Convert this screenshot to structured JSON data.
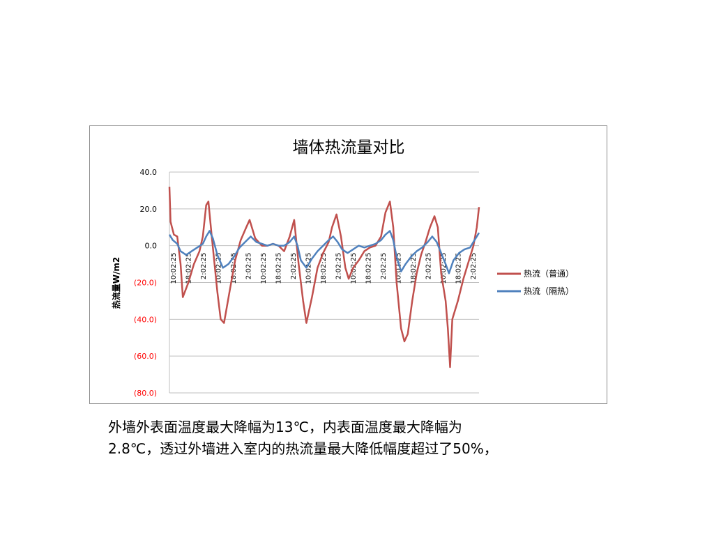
{
  "caption": {
    "line1": "外墙外表面温度最大降幅为13℃，内表面温度最大降幅为",
    "line2": "2.8℃，透过外墙进入室内的热流量最大降低幅度超过了50%，"
  },
  "chart_data": {
    "type": "line",
    "title": "墙体热流量对比",
    "xlabel": "",
    "ylabel": "热流量W/m2",
    "ylim": [
      -80,
      40
    ],
    "yticks": [
      40,
      20,
      0,
      -20,
      -40,
      -60,
      -80
    ],
    "ytick_labels": [
      "40.0",
      "20.0",
      "0.0",
      "(20.0)",
      "(40.0)",
      "(60.0)",
      "(80.0)"
    ],
    "x_tick_labels": [
      "10:02:25",
      "18:02:25",
      "2:02:25",
      "10:02:25",
      "18:02:25",
      "2:02:25",
      "10:02:25",
      "18:02:25",
      "2:02:25",
      "10:02:25",
      "18:02:25",
      "2:02:25",
      "10:02:25",
      "18:02:25",
      "2:02:25",
      "10:02:25",
      "18:02:25",
      "2:02:25",
      "10:02:25",
      "18:02:25",
      "2:02:25"
    ],
    "grid": true,
    "legend_position": "right",
    "negative_tick_color": "#ff0000",
    "series": [
      {
        "name": "热流（普通）",
        "color": "#c0504d",
        "points": [
          [
            0,
            32
          ],
          [
            0.1,
            13
          ],
          [
            0.4,
            6
          ],
          [
            0.7,
            5
          ],
          [
            1.0,
            -10
          ],
          [
            1.2,
            -28
          ],
          [
            1.7,
            -20
          ],
          [
            2.2,
            -10
          ],
          [
            2.7,
            -3
          ],
          [
            3.0,
            5
          ],
          [
            3.3,
            22
          ],
          [
            3.5,
            24
          ],
          [
            3.8,
            5
          ],
          [
            4.3,
            -25
          ],
          [
            4.6,
            -40
          ],
          [
            4.9,
            -42
          ],
          [
            5.4,
            -25
          ],
          [
            5.9,
            -8
          ],
          [
            6.4,
            3
          ],
          [
            6.9,
            10
          ],
          [
            7.2,
            14
          ],
          [
            7.7,
            4
          ],
          [
            8.3,
            0
          ],
          [
            8.8,
            0
          ],
          [
            9.3,
            1
          ],
          [
            9.8,
            0
          ],
          [
            10.3,
            -3
          ],
          [
            10.8,
            5
          ],
          [
            11.2,
            14
          ],
          [
            11.6,
            -10
          ],
          [
            12.0,
            -30
          ],
          [
            12.3,
            -42
          ],
          [
            12.8,
            -28
          ],
          [
            13.3,
            -12
          ],
          [
            13.8,
            -4
          ],
          [
            14.3,
            2
          ],
          [
            14.6,
            10
          ],
          [
            15.0,
            17
          ],
          [
            15.4,
            5
          ],
          [
            15.8,
            -12
          ],
          [
            16.1,
            -18
          ],
          [
            16.5,
            -12
          ],
          [
            17.0,
            -8
          ],
          [
            17.5,
            -3
          ],
          [
            18.0,
            -1
          ],
          [
            18.5,
            0
          ],
          [
            19.0,
            5
          ],
          [
            19.4,
            18
          ],
          [
            19.8,
            24
          ],
          [
            20.1,
            10
          ],
          [
            20.4,
            -20
          ],
          [
            20.8,
            -45
          ],
          [
            21.1,
            -52
          ],
          [
            21.4,
            -48
          ],
          [
            21.8,
            -30
          ],
          [
            22.2,
            -15
          ],
          [
            22.6,
            -5
          ],
          [
            23.0,
            2
          ],
          [
            23.4,
            10
          ],
          [
            23.8,
            16
          ],
          [
            24.1,
            10
          ],
          [
            24.4,
            -15
          ],
          [
            24.8,
            -30
          ],
          [
            25.0,
            -45
          ],
          [
            25.2,
            -66
          ],
          [
            25.4,
            -40
          ],
          [
            25.9,
            -30
          ],
          [
            26.4,
            -18
          ],
          [
            26.9,
            -8
          ],
          [
            27.3,
            0
          ],
          [
            27.6,
            10
          ],
          [
            27.8,
            21
          ]
        ]
      },
      {
        "name": "热流（隔热）",
        "color": "#4f81bd",
        "points": [
          [
            0,
            6
          ],
          [
            0.3,
            3
          ],
          [
            0.7,
            1
          ],
          [
            1.0,
            -3
          ],
          [
            1.5,
            -5
          ],
          [
            2.0,
            -3
          ],
          [
            2.5,
            -1
          ],
          [
            3.0,
            1
          ],
          [
            3.3,
            5
          ],
          [
            3.6,
            8
          ],
          [
            3.9,
            4
          ],
          [
            4.3,
            -5
          ],
          [
            4.8,
            -12
          ],
          [
            5.3,
            -10
          ],
          [
            5.8,
            -6
          ],
          [
            6.3,
            -1
          ],
          [
            6.8,
            2
          ],
          [
            7.3,
            5
          ],
          [
            7.8,
            2
          ],
          [
            8.3,
            1
          ],
          [
            8.8,
            0
          ],
          [
            9.3,
            1
          ],
          [
            9.8,
            0
          ],
          [
            10.3,
            0
          ],
          [
            10.8,
            2
          ],
          [
            11.2,
            5
          ],
          [
            11.5,
            0
          ],
          [
            11.8,
            -8
          ],
          [
            12.3,
            -12
          ],
          [
            12.8,
            -7
          ],
          [
            13.3,
            -3
          ],
          [
            13.8,
            0
          ],
          [
            14.3,
            3
          ],
          [
            14.7,
            5
          ],
          [
            15.1,
            2
          ],
          [
            15.5,
            -2
          ],
          [
            16.0,
            -4
          ],
          [
            16.5,
            -2
          ],
          [
            17.0,
            0
          ],
          [
            17.5,
            -1
          ],
          [
            18.0,
            0
          ],
          [
            18.5,
            1
          ],
          [
            19.0,
            3
          ],
          [
            19.4,
            6
          ],
          [
            19.8,
            8
          ],
          [
            20.1,
            3
          ],
          [
            20.4,
            -6
          ],
          [
            20.8,
            -14
          ],
          [
            21.2,
            -10
          ],
          [
            21.7,
            -6
          ],
          [
            22.2,
            -3
          ],
          [
            22.7,
            -1
          ],
          [
            23.2,
            2
          ],
          [
            23.6,
            5
          ],
          [
            24.0,
            2
          ],
          [
            24.4,
            -4
          ],
          [
            24.8,
            -10
          ],
          [
            25.1,
            -15
          ],
          [
            25.5,
            -8
          ],
          [
            26.0,
            -4
          ],
          [
            26.5,
            -2
          ],
          [
            27.0,
            -1
          ],
          [
            27.4,
            3
          ],
          [
            27.8,
            7
          ]
        ]
      }
    ]
  }
}
